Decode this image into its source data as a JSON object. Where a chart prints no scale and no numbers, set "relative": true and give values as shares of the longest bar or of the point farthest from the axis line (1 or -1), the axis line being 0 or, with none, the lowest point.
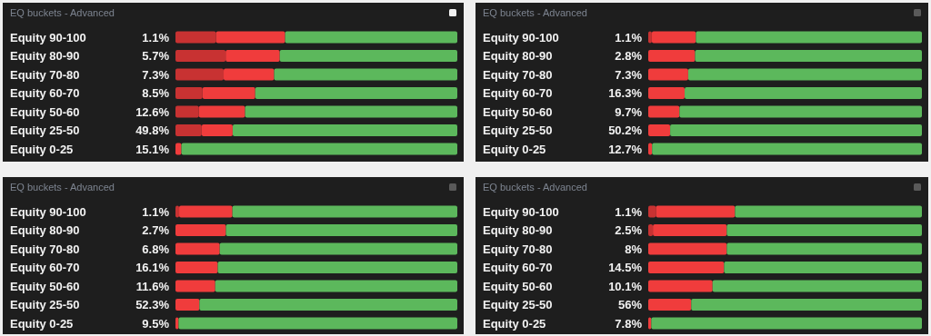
{
  "chart_data": [
    {
      "type": "bar",
      "title": "EQ buckets - Advanced",
      "orientation": "horizontal",
      "stacked": true,
      "relative": true,
      "categories": [
        "Equity 90-100",
        "Equity 80-90",
        "Equity 70-80",
        "Equity 60-70",
        "Equity 50-60",
        "Equity 25-50",
        "Equity 0-25"
      ],
      "series": [
        {
          "color": "#c83232",
          "values": [
            0.144,
            0.178,
            0.171,
            0.096,
            0.083,
            0.093,
            0
          ]
        },
        {
          "color": "#f03c3c",
          "values": [
            0.245,
            0.192,
            0.179,
            0.187,
            0.164,
            0.11,
            0.021
          ]
        },
        {
          "color": "#5cb85c",
          "values": [
            0.611,
            0.63,
            0.65,
            0.717,
            0.753,
            0.797,
            0.979
          ]
        }
      ],
      "annotations": [
        "1.1%",
        "5.7%",
        "7.3%",
        "8.5%",
        "12.6%",
        "49.8%",
        "15.1%"
      ]
    },
    {
      "type": "bar",
      "title": "EQ buckets - Advanced",
      "orientation": "horizontal",
      "stacked": true,
      "relative": true,
      "categories": [
        "Equity 90-100",
        "Equity 80-90",
        "Equity 70-80",
        "Equity 60-70",
        "Equity 50-60",
        "Equity 25-50",
        "Equity 0-25"
      ],
      "series": [
        {
          "color": "#c83232",
          "values": [
            0.013,
            0,
            0,
            0,
            0,
            0,
            0
          ]
        },
        {
          "color": "#f03c3c",
          "values": [
            0.161,
            0.171,
            0.146,
            0.133,
            0.114,
            0.08,
            0.014
          ]
        },
        {
          "color": "#5cb85c",
          "values": [
            0.826,
            0.829,
            0.854,
            0.867,
            0.886,
            0.92,
            0.986
          ]
        }
      ],
      "annotations": [
        "1.1%",
        "2.8%",
        "7.3%",
        "16.3%",
        "9.7%",
        "50.2%",
        "12.7%"
      ]
    },
    {
      "type": "bar",
      "title": "EQ buckets - Advanced",
      "orientation": "horizontal",
      "stacked": true,
      "relative": true,
      "categories": [
        "Equity 90-100",
        "Equity 80-90",
        "Equity 70-80",
        "Equity 60-70",
        "Equity 50-60",
        "Equity 25-50",
        "Equity 0-25"
      ],
      "series": [
        {
          "color": "#c83232",
          "values": [
            0.013,
            0,
            0,
            0,
            0,
            0,
            0
          ]
        },
        {
          "color": "#f03c3c",
          "values": [
            0.189,
            0.179,
            0.157,
            0.15,
            0.141,
            0.085,
            0.011
          ]
        },
        {
          "color": "#5cb85c",
          "values": [
            0.798,
            0.821,
            0.843,
            0.85,
            0.859,
            0.915,
            0.989
          ]
        }
      ],
      "annotations": [
        "1.1%",
        "2.7%",
        "6.8%",
        "16.1%",
        "11.6%",
        "52.3%",
        "9.5%"
      ]
    },
    {
      "type": "bar",
      "title": "EQ buckets - Advanced",
      "orientation": "horizontal",
      "stacked": true,
      "relative": true,
      "categories": [
        "Equity 90-100",
        "Equity 80-90",
        "Equity 70-80",
        "Equity 60-70",
        "Equity 50-60",
        "Equity 25-50",
        "Equity 0-25"
      ],
      "series": [
        {
          "color": "#c83232",
          "values": [
            0.028,
            0.017,
            0,
            0,
            0,
            0,
            0
          ]
        },
        {
          "color": "#f03c3c",
          "values": [
            0.289,
            0.27,
            0.287,
            0.277,
            0.235,
            0.157,
            0.011
          ]
        },
        {
          "color": "#5cb85c",
          "values": [
            0.683,
            0.713,
            0.713,
            0.723,
            0.765,
            0.843,
            0.989
          ]
        }
      ],
      "annotations": [
        "1.1%",
        "2.5%",
        "8%",
        "14.5%",
        "10.1%",
        "56%",
        "7.8%"
      ]
    }
  ]
}
